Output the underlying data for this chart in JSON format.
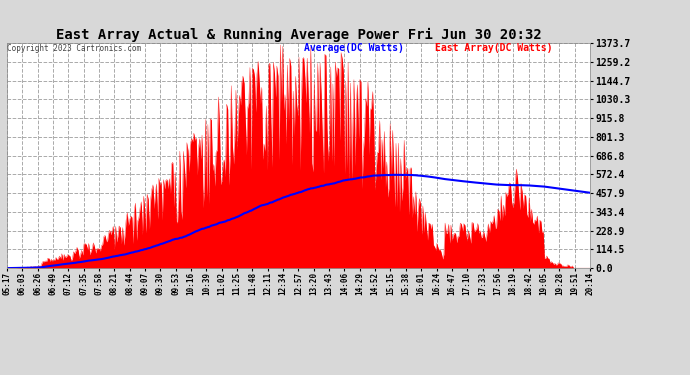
{
  "title": "East Array Actual & Running Average Power Fri Jun 30 20:32",
  "copyright": "Copyright 2023 Cartronics.com",
  "legend_avg": "Average(DC Watts)",
  "legend_east": "East Array(DC Watts)",
  "yticks": [
    0.0,
    114.5,
    228.9,
    343.4,
    457.9,
    572.4,
    686.8,
    801.3,
    915.8,
    1030.3,
    1144.7,
    1259.2,
    1373.7
  ],
  "ymax": 1373.7,
  "ymin": 0.0,
  "bg_color": "#d8d8d8",
  "plot_bg_color": "#ffffff",
  "grid_color": "#aaaaaa",
  "fill_color": "#ff0000",
  "avg_line_color": "#0000ff",
  "title_color": "#000000",
  "copyright_color": "#444444",
  "avg_label_color": "#0000ff",
  "east_label_color": "#ff0000",
  "time_labels": [
    "05:17",
    "06:03",
    "06:26",
    "06:49",
    "07:12",
    "07:35",
    "07:58",
    "08:21",
    "08:44",
    "09:07",
    "09:30",
    "09:53",
    "10:16",
    "10:39",
    "11:02",
    "11:25",
    "11:48",
    "12:11",
    "12:34",
    "12:57",
    "13:20",
    "13:43",
    "14:06",
    "14:29",
    "14:52",
    "15:15",
    "15:38",
    "16:01",
    "16:24",
    "16:47",
    "17:10",
    "17:33",
    "17:56",
    "18:19",
    "18:42",
    "19:05",
    "19:28",
    "19:51",
    "20:14"
  ]
}
